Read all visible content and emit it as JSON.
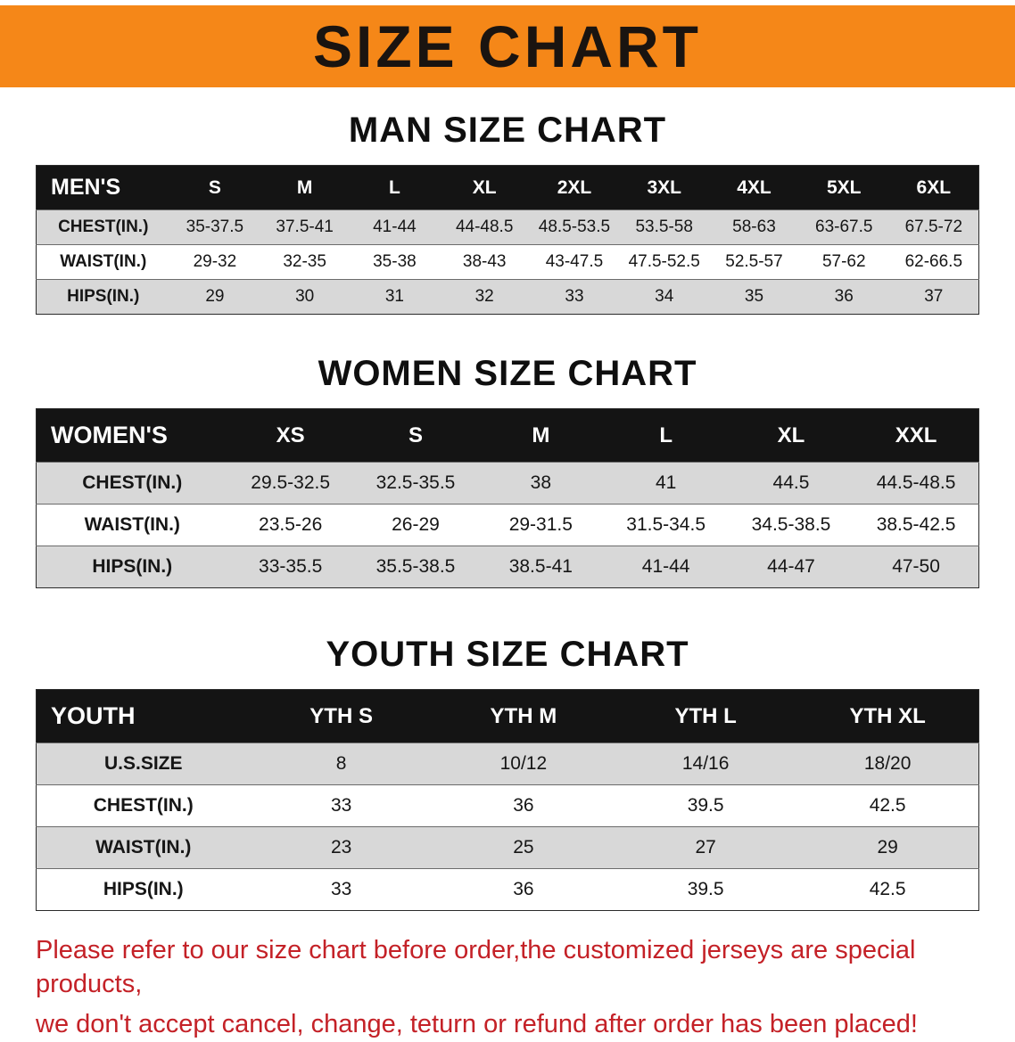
{
  "banner": {
    "title": "SIZE CHART",
    "bg_color": "#f58718",
    "text_color": "#1a1410"
  },
  "sections": [
    {
      "id": "men",
      "title": "MAN SIZE CHART",
      "header_label": "MEN'S",
      "columns": [
        "S",
        "M",
        "L",
        "XL",
        "2XL",
        "3XL",
        "4XL",
        "5XL",
        "6XL"
      ],
      "rows": [
        {
          "label": "CHEST(IN.)",
          "values": [
            "35-37.5",
            "37.5-41",
            "41-44",
            "44-48.5",
            "48.5-53.5",
            "53.5-58",
            "58-63",
            "63-67.5",
            "67.5-72"
          ]
        },
        {
          "label": "WAIST(IN.)",
          "values": [
            "29-32",
            "32-35",
            "35-38",
            "38-43",
            "43-47.5",
            "47.5-52.5",
            "52.5-57",
            "57-62",
            "62-66.5"
          ]
        },
        {
          "label": "HIPS(IN.)",
          "values": [
            "29",
            "30",
            "31",
            "32",
            "33",
            "34",
            "35",
            "36",
            "37"
          ]
        }
      ]
    },
    {
      "id": "women",
      "title": "WOMEN SIZE CHART",
      "header_label": "WOMEN'S",
      "columns": [
        "XS",
        "S",
        "M",
        "L",
        "XL",
        "XXL"
      ],
      "rows": [
        {
          "label": "CHEST(IN.)",
          "values": [
            "29.5-32.5",
            "32.5-35.5",
            "38",
            "41",
            "44.5",
            "44.5-48.5"
          ]
        },
        {
          "label": "WAIST(IN.)",
          "values": [
            "23.5-26",
            "26-29",
            "29-31.5",
            "31.5-34.5",
            "34.5-38.5",
            "38.5-42.5"
          ]
        },
        {
          "label": "HIPS(IN.)",
          "values": [
            "33-35.5",
            "35.5-38.5",
            "38.5-41",
            "41-44",
            "44-47",
            "47-50"
          ]
        }
      ]
    },
    {
      "id": "youth",
      "title": "YOUTH SIZE CHART",
      "header_label": "YOUTH",
      "columns": [
        "YTH S",
        "YTH M",
        "YTH L",
        "YTH XL"
      ],
      "rows": [
        {
          "label": "U.S.SIZE",
          "values": [
            "8",
            "10/12",
            "14/16",
            "18/20"
          ]
        },
        {
          "label": "CHEST(IN.)",
          "values": [
            "33",
            "36",
            "39.5",
            "42.5"
          ]
        },
        {
          "label": "WAIST(IN.)",
          "values": [
            "23",
            "25",
            "27",
            "29"
          ]
        },
        {
          "label": "HIPS(IN.)",
          "values": [
            "33",
            "36",
            "39.5",
            "42.5"
          ]
        }
      ]
    }
  ],
  "disclaimer": {
    "line1": "Please refer to our size chart before order,the customized jerseys are special products,",
    "line2": "we don't accept cancel, change, teturn or refund after order has been placed!",
    "color": "#c42127"
  }
}
